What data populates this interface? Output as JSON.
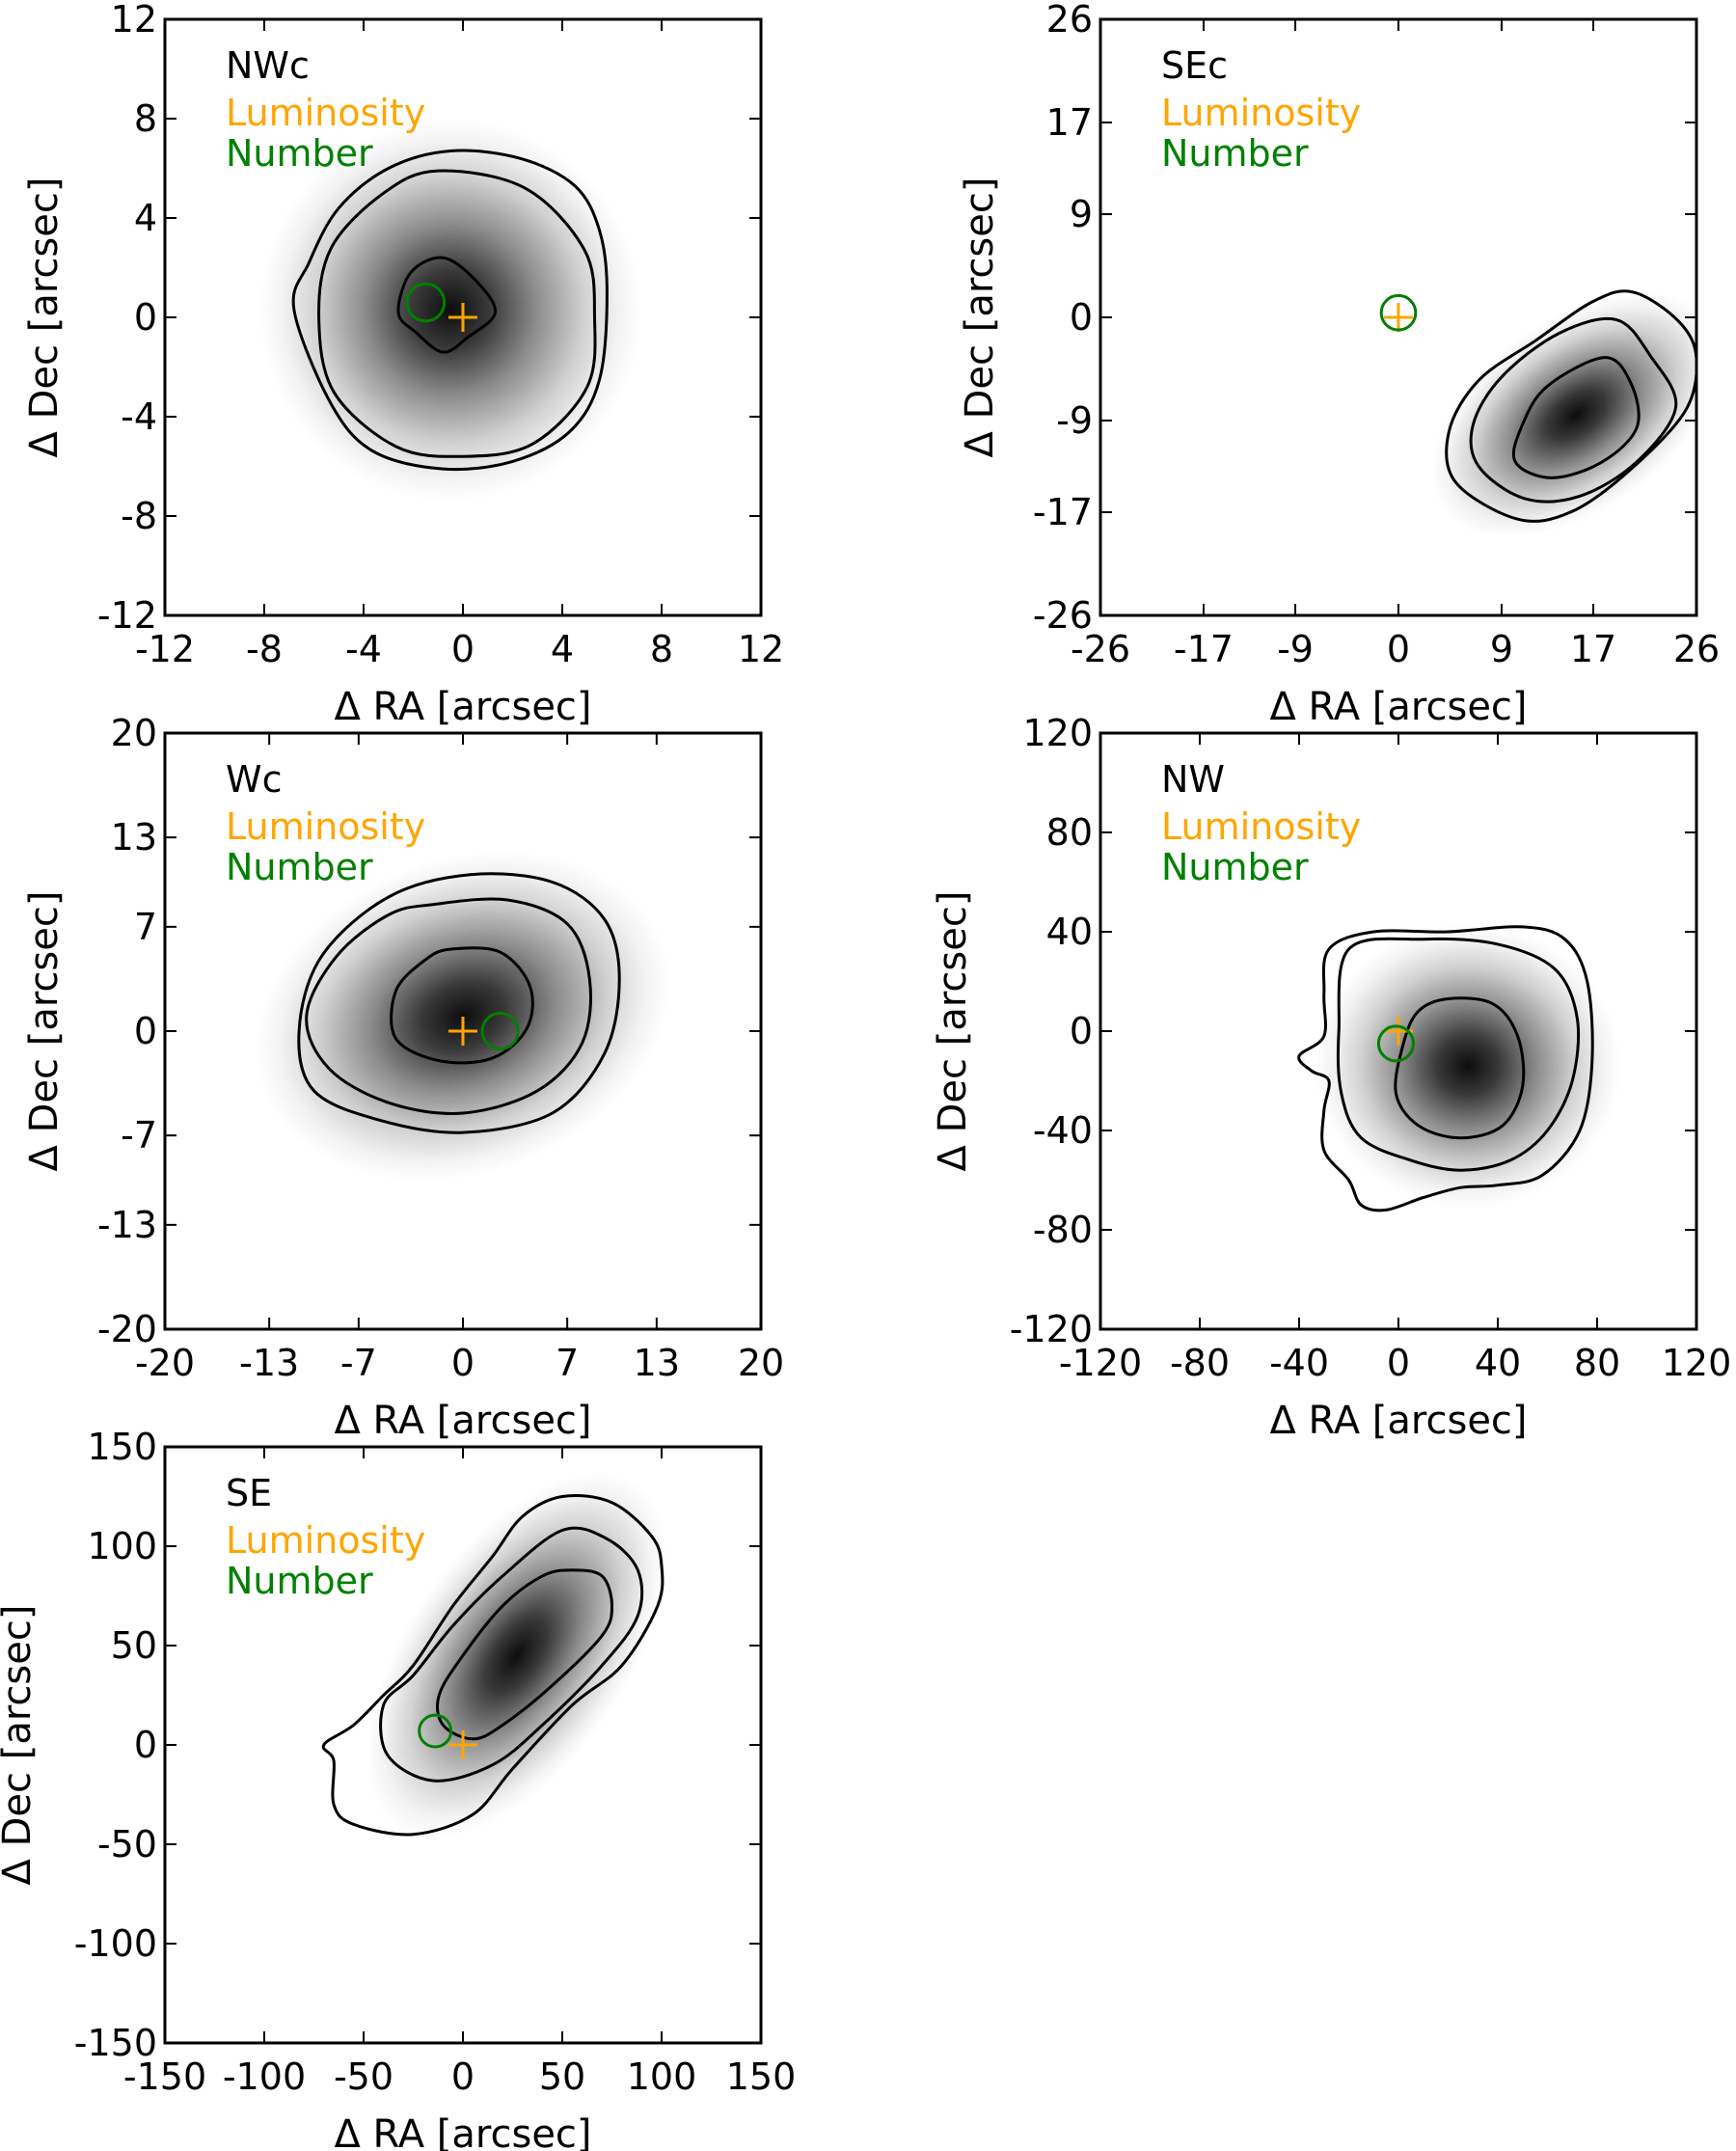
{
  "figure": {
    "colors": {
      "luminosity": "#FFA500",
      "number": "#008000",
      "contour": "#000000",
      "axes": "#000000",
      "density": "#000000"
    },
    "legend": {
      "luminosity_label": "Luminosity",
      "number_label": "Number"
    }
  },
  "chart_data": [
    {
      "type": "contour",
      "title": "NWc",
      "xlabel": "Δ RA [arcsec]",
      "ylabel": "Δ Dec [arcsec]",
      "xlim": [
        -12,
        12
      ],
      "ylim": [
        -12,
        12
      ],
      "xticks": [
        "-12",
        "-8",
        "-4",
        "0",
        "4",
        "8",
        "12"
      ],
      "yticks": [
        "12",
        "8",
        "4",
        "0",
        "-4",
        "-8",
        "-12"
      ],
      "xtick_values": [
        -12,
        -8,
        -4,
        0,
        4,
        8,
        12
      ],
      "ytick_values": [
        12,
        8,
        4,
        0,
        -4,
        -8,
        -12
      ],
      "luminosity_center": [
        0.0,
        0.0
      ],
      "number_center": [
        -1.5,
        0.6
      ],
      "number_circle_radius": 0.75,
      "density_peak": [
        -0.5,
        0.3
      ],
      "contours": [
        [
          [
            -0.8,
            2.4
          ],
          [
            0.5,
            1.5
          ],
          [
            1.3,
            0.2
          ],
          [
            0.2,
            -0.8
          ],
          [
            -0.8,
            -1.4
          ],
          [
            -1.9,
            -0.6
          ],
          [
            -2.6,
            0.2
          ],
          [
            -2.1,
            1.8
          ]
        ],
        [
          [
            -1.0,
            5.9
          ],
          [
            2.5,
            5.2
          ],
          [
            4.9,
            2.7
          ],
          [
            5.3,
            0.0
          ],
          [
            5.0,
            -2.8
          ],
          [
            2.8,
            -5.1
          ],
          [
            0.0,
            -5.6
          ],
          [
            -2.7,
            -5.2
          ],
          [
            -5.2,
            -3.0
          ],
          [
            -5.8,
            0.0
          ],
          [
            -5.3,
            2.8
          ],
          [
            -3.2,
            5.0
          ]
        ],
        [
          [
            -0.5,
            6.7
          ],
          [
            2.3,
            6.4
          ],
          [
            4.5,
            5.3
          ],
          [
            5.5,
            3.5
          ],
          [
            5.8,
            1.0
          ],
          [
            5.5,
            -2.5
          ],
          [
            4.3,
            -4.6
          ],
          [
            2.0,
            -5.8
          ],
          [
            -0.8,
            -6.1
          ],
          [
            -3.6,
            -5.4
          ],
          [
            -5.3,
            -3.5
          ],
          [
            -6.8,
            0.3
          ],
          [
            -6.2,
            2.2
          ],
          [
            -5.0,
            4.4
          ],
          [
            -3.0,
            6.0
          ]
        ]
      ],
      "density_sigma": [
        3.5,
        3.5
      ],
      "density_angle": 0
    },
    {
      "type": "contour",
      "title": "SEc",
      "xlabel": "Δ RA [arcsec]",
      "ylabel": "Δ Dec [arcsec]",
      "xlim": [
        -26,
        26
      ],
      "ylim": [
        -26,
        26
      ],
      "xticks": [
        "-26",
        "-17",
        "-9",
        "0",
        "9",
        "17",
        "26"
      ],
      "yticks": [
        "26",
        "17",
        "9",
        "0",
        "-9",
        "-17",
        "-26"
      ],
      "xtick_values": [
        -26,
        -17,
        -9,
        0,
        9,
        17,
        26
      ],
      "ytick_values": [
        26,
        17,
        9,
        0,
        -9,
        -17,
        -26
      ],
      "luminosity_center": [
        0.0,
        0.0
      ],
      "number_center": [
        0.0,
        0.4
      ],
      "number_circle_radius": 1.5,
      "density_peak": [
        15.5,
        -8.5
      ],
      "contours": [
        [
          [
            18.0,
            -3.5
          ],
          [
            20.3,
            -5.8
          ],
          [
            20.8,
            -9.6
          ],
          [
            17.8,
            -12.6
          ],
          [
            13.4,
            -14.0
          ],
          [
            10.2,
            -12.6
          ],
          [
            10.8,
            -9.4
          ],
          [
            13.0,
            -6.0
          ]
        ],
        [
          [
            19.0,
            -0.2
          ],
          [
            22.0,
            -3.4
          ],
          [
            24.2,
            -7.8
          ],
          [
            20.8,
            -12.6
          ],
          [
            15.8,
            -15.6
          ],
          [
            11.0,
            -15.8
          ],
          [
            7.0,
            -13.0
          ],
          [
            6.5,
            -9.4
          ],
          [
            9.0,
            -5.2
          ],
          [
            14.0,
            -1.4
          ]
        ],
        [
          [
            20.5,
            2.2
          ],
          [
            24.5,
            -0.4
          ],
          [
            26.0,
            -3.6
          ],
          [
            25.0,
            -8.2
          ],
          [
            20.0,
            -13.5
          ],
          [
            15.0,
            -17.0
          ],
          [
            10.4,
            -17.6
          ],
          [
            5.0,
            -14.4
          ],
          [
            4.4,
            -10.0
          ],
          [
            7.0,
            -5.5
          ],
          [
            12.0,
            -2.0
          ],
          [
            17.0,
            1.4
          ]
        ]
      ],
      "density_sigma": [
        6.5,
        3.8
      ],
      "density_angle": 35
    },
    {
      "type": "contour",
      "title": "Wc",
      "xlabel": "Δ RA [arcsec]",
      "ylabel": "Δ Dec [arcsec]",
      "xlim": [
        -20,
        20
      ],
      "ylim": [
        -20,
        20
      ],
      "xticks": [
        "-20",
        "-13",
        "-7",
        "0",
        "7",
        "13",
        "20"
      ],
      "yticks": [
        "20",
        "13",
        "7",
        "0",
        "-7",
        "-13",
        "-20"
      ],
      "xtick_values": [
        -20,
        -13,
        -7,
        0,
        7,
        13,
        20
      ],
      "ytick_values": [
        20,
        13,
        7,
        0,
        -7,
        -13,
        -20
      ],
      "luminosity_center": [
        0.0,
        0.0
      ],
      "number_center": [
        2.5,
        0.0
      ],
      "number_circle_radius": 1.2,
      "density_peak": [
        0.0,
        1.0
      ],
      "contours": [
        [
          [
            -0.8,
            5.5
          ],
          [
            2.5,
            5.3
          ],
          [
            4.5,
            3.0
          ],
          [
            4.3,
            0.2
          ],
          [
            2.0,
            -1.8
          ],
          [
            -1.5,
            -2.0
          ],
          [
            -4.5,
            -0.5
          ],
          [
            -4.5,
            2.7
          ],
          [
            -2.5,
            4.8
          ]
        ],
        [
          [
            -2.0,
            8.5
          ],
          [
            3.0,
            8.8
          ],
          [
            7.0,
            7.2
          ],
          [
            8.5,
            3.5
          ],
          [
            8.0,
            -0.8
          ],
          [
            5.0,
            -4.0
          ],
          [
            0.0,
            -5.5
          ],
          [
            -5.0,
            -4.8
          ],
          [
            -9.0,
            -2.5
          ],
          [
            -10.5,
            1.0
          ],
          [
            -8.5,
            5.0
          ],
          [
            -5.0,
            7.8
          ]
        ],
        [
          [
            0.5,
            10.5
          ],
          [
            6.0,
            10.0
          ],
          [
            9.5,
            7.5
          ],
          [
            10.5,
            3.5
          ],
          [
            9.5,
            -1.5
          ],
          [
            6.0,
            -5.5
          ],
          [
            0.0,
            -6.8
          ],
          [
            -5.5,
            -6.0
          ],
          [
            -10.0,
            -4.0
          ],
          [
            -11.0,
            0.0
          ],
          [
            -9.5,
            5.0
          ],
          [
            -5.0,
            9.0
          ]
        ]
      ],
      "density_sigma": [
        6.5,
        4.8
      ],
      "density_angle": 20
    },
    {
      "type": "contour",
      "title": "NW",
      "xlabel": "Δ RA [arcsec]",
      "ylabel": "Δ Dec [arcsec]",
      "xlim": [
        -120,
        120
      ],
      "ylim": [
        -120,
        120
      ],
      "xticks": [
        "-120",
        "-80",
        "-40",
        "0",
        "40",
        "80",
        "120"
      ],
      "yticks": [
        "120",
        "80",
        "40",
        "0",
        "-40",
        "-80",
        "-120"
      ],
      "xtick_values": [
        -120,
        -80,
        -40,
        0,
        40,
        80,
        120
      ],
      "ytick_values": [
        120,
        80,
        40,
        0,
        -40,
        -80,
        -120
      ],
      "luminosity_center": [
        0.0,
        0.0
      ],
      "number_center": [
        -1.0,
        -5.0
      ],
      "number_circle_radius": 7.0,
      "density_peak": [
        28.0,
        -14.0
      ],
      "contours": [
        [
          [
            20.0,
            13.0
          ],
          [
            38.0,
            11.0
          ],
          [
            48.0,
            -2.0
          ],
          [
            50.0,
            -22.0
          ],
          [
            42.0,
            -38.0
          ],
          [
            25.0,
            -43.0
          ],
          [
            8.0,
            -38.0
          ],
          [
            -1.0,
            -25.0
          ],
          [
            2.0,
            -5.0
          ],
          [
            8.0,
            8.0
          ]
        ],
        [
          [
            -20.0,
            33.0
          ],
          [
            10.0,
            37.0
          ],
          [
            40.0,
            35.0
          ],
          [
            63.0,
            25.0
          ],
          [
            72.0,
            5.0
          ],
          [
            70.0,
            -20.0
          ],
          [
            60.0,
            -40.0
          ],
          [
            45.0,
            -52.0
          ],
          [
            25.0,
            -56.0
          ],
          [
            5.0,
            -52.0
          ],
          [
            -15.0,
            -43.0
          ],
          [
            -23.0,
            -25.0
          ],
          [
            -24.0,
            0.0
          ]
        ],
        [
          [
            -28.0,
            33.0
          ],
          [
            -10.0,
            40.0
          ],
          [
            20.0,
            40.0
          ],
          [
            50.0,
            42.0
          ],
          [
            67.0,
            37.0
          ],
          [
            76.0,
            20.0
          ],
          [
            78.0,
            -12.0
          ],
          [
            73.0,
            -40.0
          ],
          [
            58.0,
            -58.0
          ],
          [
            40.0,
            -62.0
          ],
          [
            25.0,
            -63.0
          ],
          [
            10.0,
            -67.0
          ],
          [
            -5.0,
            -72.0
          ],
          [
            -15.0,
            -70.0
          ],
          [
            -20.0,
            -60.0
          ],
          [
            -30.0,
            -48.0
          ],
          [
            -30.0,
            -32.0
          ],
          [
            -28.0,
            -20.0
          ],
          [
            -35.0,
            -16.0
          ],
          [
            -40.0,
            -10.0
          ],
          [
            -30.0,
            -2.0
          ],
          [
            -30.0,
            15.0
          ]
        ]
      ],
      "density_sigma": [
        28.0,
        26.0
      ],
      "density_angle": 0
    },
    {
      "type": "contour",
      "title": "SE",
      "xlabel": "Δ RA [arcsec]",
      "ylabel": "Δ Dec [arcsec]",
      "xlim": [
        -150,
        150
      ],
      "ylim": [
        -150,
        150
      ],
      "xticks": [
        "-150",
        "-100",
        "-50",
        "0",
        "50",
        "100",
        "150"
      ],
      "yticks": [
        "150",
        "100",
        "50",
        "0",
        "-50",
        "-100",
        "-150"
      ],
      "xtick_values": [
        -150,
        -100,
        -50,
        0,
        50,
        100,
        150
      ],
      "ytick_values": [
        150,
        100,
        50,
        0,
        -50,
        -100,
        -150
      ],
      "luminosity_center": [
        0.0,
        0.0
      ],
      "number_center": [
        -14.0,
        7.0
      ],
      "number_circle_radius": 8.0,
      "density_peak": [
        27.0,
        45.0
      ],
      "contours": [
        [
          [
            55.0,
            88.0
          ],
          [
            70.0,
            85.0
          ],
          [
            75.0,
            70.0
          ],
          [
            70.0,
            55.0
          ],
          [
            45.0,
            30.0
          ],
          [
            20.0,
            10.0
          ],
          [
            5.0,
            3.0
          ],
          [
            -10.0,
            10.0
          ],
          [
            -12.0,
            25.0
          ],
          [
            0.0,
            45.0
          ],
          [
            20.0,
            70.0
          ],
          [
            40.0,
            85.0
          ]
        ],
        [
          [
            50.0,
            108.0
          ],
          [
            72.0,
            104.0
          ],
          [
            88.0,
            88.0
          ],
          [
            88.0,
            65.0
          ],
          [
            70.0,
            40.0
          ],
          [
            40.0,
            10.0
          ],
          [
            15.0,
            -10.0
          ],
          [
            -15.0,
            -18.0
          ],
          [
            -38.0,
            -5.0
          ],
          [
            -40.0,
            20.0
          ],
          [
            -25.0,
            35.0
          ],
          [
            -5.0,
            60.0
          ],
          [
            20.0,
            85.0
          ]
        ],
        [
          [
            50.0,
            125.0
          ],
          [
            75.0,
            122.0
          ],
          [
            95.0,
            105.0
          ],
          [
            100.0,
            90.0
          ],
          [
            98.0,
            70.0
          ],
          [
            80.0,
            40.0
          ],
          [
            55.0,
            20.0
          ],
          [
            25.0,
            -12.0
          ],
          [
            5.0,
            -35.0
          ],
          [
            -25.0,
            -45.0
          ],
          [
            -55.0,
            -40.0
          ],
          [
            -65.0,
            -30.0
          ],
          [
            -65.0,
            -8.0
          ],
          [
            -70.0,
            0.0
          ],
          [
            -55.0,
            10.0
          ],
          [
            -40.0,
            25.0
          ],
          [
            -25.0,
            40.0
          ],
          [
            -5.0,
            70.0
          ],
          [
            15.0,
            95.0
          ],
          [
            30.0,
            115.0
          ]
        ]
      ],
      "density_sigma": [
        48.0,
        25.0
      ],
      "density_angle": 55
    }
  ]
}
